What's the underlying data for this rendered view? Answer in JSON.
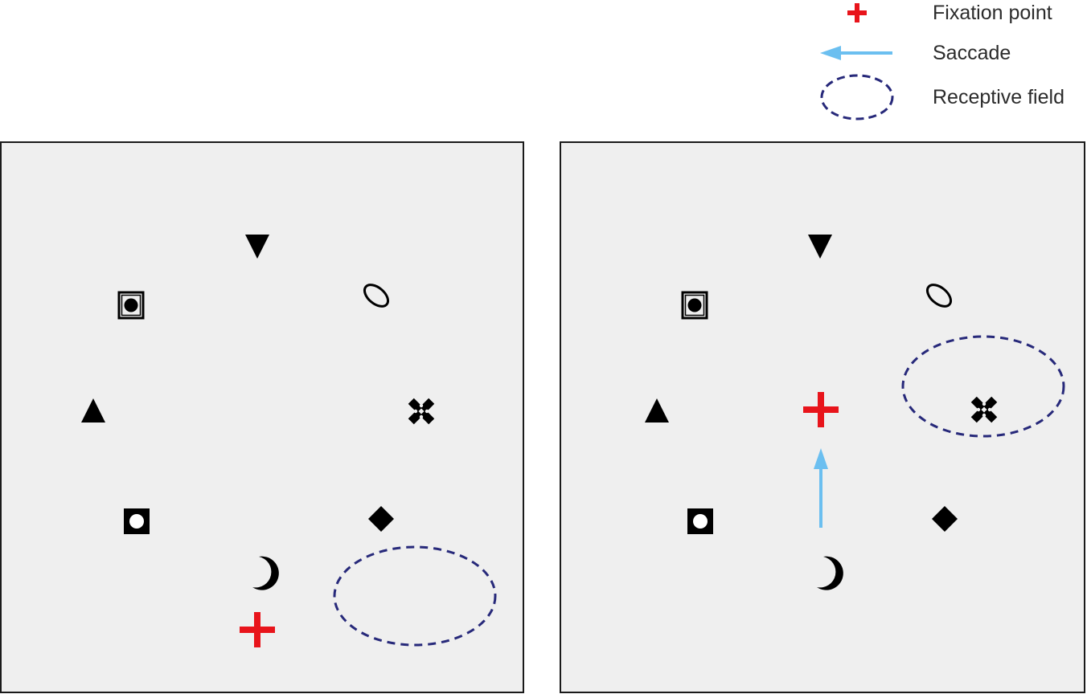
{
  "legend": {
    "fixation_label": "Fixation point",
    "saccade_label": "Saccade",
    "receptive_field_label": "Receptive field"
  },
  "colors": {
    "fixation": "#e8141b",
    "saccade": "#6bbff0",
    "receptive_field": "#27297a",
    "panel_background": "#efefef",
    "symbol": "#000000"
  },
  "panels": [
    {
      "name": "before-saccade",
      "fixation_point": "lower-center",
      "receptive_field": "lower-right",
      "saccade": false
    },
    {
      "name": "after-saccade",
      "fixation_point": "center",
      "receptive_field": "over-cross-symbol",
      "saccade": true
    }
  ],
  "symbols": [
    "down-triangle",
    "boxed-dot",
    "tilted-ellipse",
    "up-triangle",
    "cross-pattern",
    "white-dot-square",
    "diamond",
    "crescent-moon"
  ]
}
